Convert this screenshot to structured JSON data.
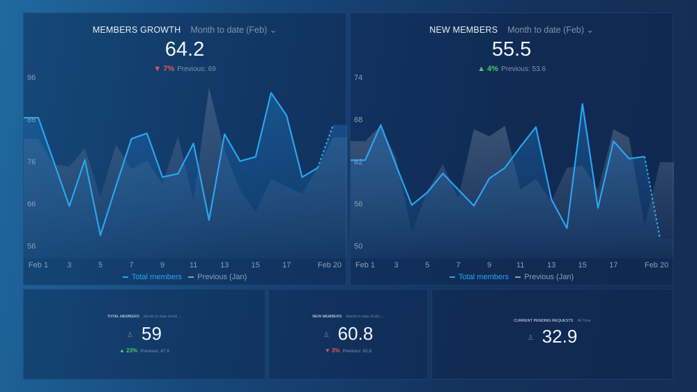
{
  "colors": {
    "current": "#2aa5f0",
    "previous": "#6b7e98",
    "down": "#e85a4f",
    "up": "#4cc86a"
  },
  "members_growth": {
    "title": "MEMBERS GROWTH",
    "range": "Month to date (Feb)",
    "value": "64.2",
    "change": "7%",
    "change_dir": "down",
    "previous": "Previous: 69",
    "legend": {
      "current": "Total members",
      "previous": "Previous (Jan)"
    }
  },
  "new_members": {
    "title": "NEW MEMBERS",
    "range": "Month to date (Feb)",
    "value": "55.5",
    "change": "4%",
    "change_dir": "up",
    "previous": "Previous: 53.6",
    "legend": {
      "current": "Total members",
      "previous": "Previous (Jan)"
    }
  },
  "total_members_card": {
    "title": "TOTAL MEMBERS",
    "range": "Month to date (Feb)",
    "value": "59",
    "change": "23%",
    "change_dir": "up",
    "previous": "Previous: 47.9"
  },
  "new_members_card": {
    "title": "NEW MEMBERS",
    "range": "Month to date (Feb)",
    "value": "60.8",
    "change": "3%",
    "change_dir": "down",
    "previous": "Previous: 62.8"
  },
  "pending_card": {
    "title": "CURRENT PENDING REQUESTS",
    "range": "All Time",
    "value": "32.9"
  },
  "chart_data": [
    {
      "type": "line",
      "title": "MEMBERS GROWTH",
      "x": [
        1,
        2,
        3,
        4,
        5,
        6,
        7,
        8,
        9,
        10,
        11,
        12,
        13,
        14,
        15,
        16,
        17,
        18,
        19,
        20
      ],
      "xticks": [
        "Feb 1",
        "3",
        "5",
        "7",
        "9",
        "11",
        "13",
        "15",
        "17",
        "Feb 20"
      ],
      "yticks": [
        "96",
        "86",
        "76",
        "66",
        "56"
      ],
      "ylim": [
        56,
        96
      ],
      "series": [
        {
          "name": "Total members",
          "values": [
            86.4,
            75.9,
            65.4,
            76.4,
            58.5,
            70.1,
            81.4,
            82.7,
            72.3,
            73.1,
            80.3,
            62.1,
            82.5,
            76.1,
            77.1,
            92.3,
            86.9,
            72.3,
            74.5,
            84.7
          ],
          "last_dashed": true
        },
        {
          "name": "Previous (Jan)",
          "values": [
            81.4,
            75.3,
            74.8,
            79.2,
            67.6,
            80.0,
            74.2,
            76.2,
            70.7,
            81.9,
            66.8,
            93.5,
            78.6,
            69.3,
            64.0,
            71.8,
            70.1,
            68.4,
            74.5,
            81.7
          ]
        }
      ]
    },
    {
      "type": "line",
      "title": "NEW MEMBERS",
      "x": [
        1,
        2,
        3,
        4,
        5,
        6,
        7,
        8,
        9,
        10,
        11,
        12,
        13,
        14,
        15,
        16,
        17,
        18,
        19,
        20
      ],
      "xticks": [
        "Feb 1",
        "3",
        "5",
        "7",
        "9",
        "11",
        "13",
        "15",
        "17",
        "Feb 20"
      ],
      "yticks": [
        "74",
        "68",
        "62",
        "56",
        "50"
      ],
      "ylim": [
        50,
        74
      ],
      "series": [
        {
          "name": "Total members",
          "values": [
            62.2,
            67.2,
            61.4,
            55.8,
            57.6,
            60.3,
            58.0,
            55.7,
            59.6,
            61.1,
            64.1,
            66.9,
            56.6,
            52.5,
            70.2,
            55.4,
            64.9,
            62.4,
            62.7,
            51.0
          ],
          "last_dashed": true
        },
        {
          "name": "Previous (Jan)",
          "values": [
            64.9,
            67.1,
            62.4,
            51.9,
            57.8,
            61.6,
            56.8,
            66.6,
            65.6,
            67.1,
            58.0,
            59.5,
            56.3,
            61.1,
            61.4,
            58.0,
            66.6,
            65.4,
            52.8,
            61.9
          ]
        }
      ]
    }
  ]
}
